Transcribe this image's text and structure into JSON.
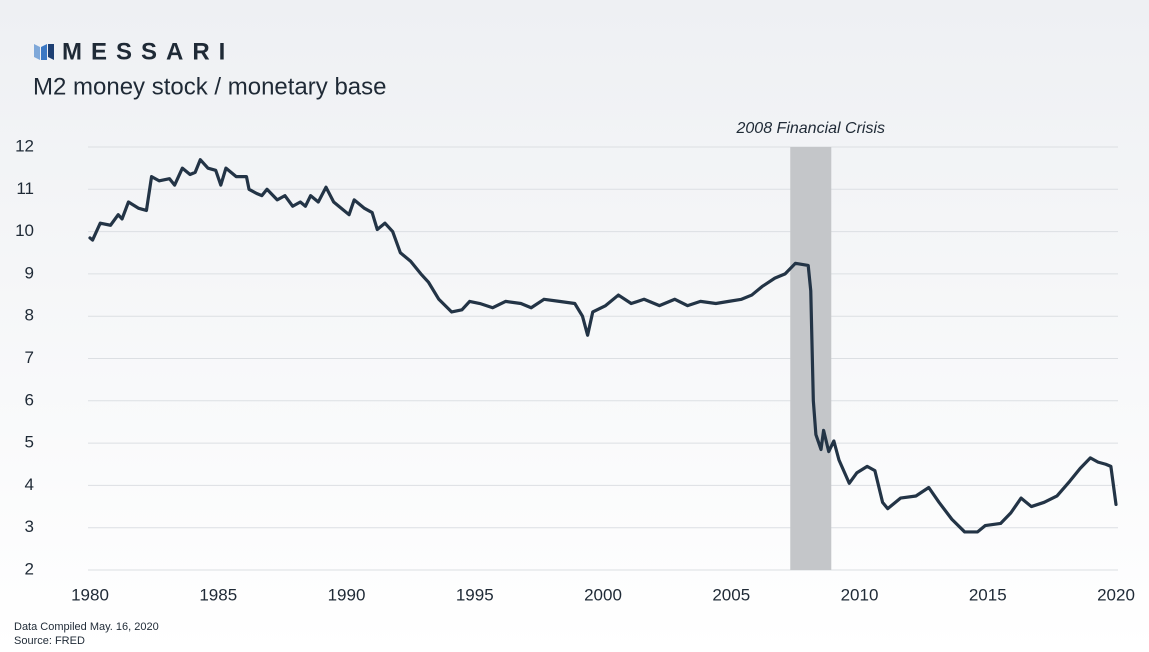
{
  "brand": "MESSARI",
  "chart_data": {
    "type": "line",
    "title": "M2 money stock / monetary base",
    "annotation": "2008 Financial Crisis",
    "shade": [
      2007.3,
      2008.9
    ],
    "shade_color": "#c4c6c9",
    "grid": true,
    "xlim": [
      1980,
      2020
    ],
    "xticks": [
      1980,
      1985,
      1990,
      1995,
      2000,
      2005,
      2010,
      2015,
      2020
    ],
    "ylim": [
      2,
      12
    ],
    "yticks": [
      2,
      3,
      4,
      5,
      6,
      7,
      8,
      9,
      10,
      11,
      12
    ],
    "series": [
      {
        "name": "M2 / monetary base",
        "color": "#233446",
        "x": [
          1980.0,
          1980.1,
          1980.4,
          1980.8,
          1981.1,
          1981.25,
          1981.5,
          1981.9,
          1982.2,
          1982.4,
          1982.7,
          1983.1,
          1983.3,
          1983.6,
          1983.9,
          1984.1,
          1984.3,
          1984.6,
          1984.9,
          1985.1,
          1985.3,
          1985.7,
          1986.1,
          1986.2,
          1986.5,
          1986.7,
          1986.9,
          1987.3,
          1987.6,
          1987.9,
          1988.2,
          1988.4,
          1988.6,
          1988.9,
          1989.2,
          1989.5,
          1989.7,
          1990.1,
          1990.3,
          1990.7,
          1991.0,
          1991.2,
          1991.5,
          1991.8,
          1992.1,
          1992.5,
          1992.9,
          1993.2,
          1993.6,
          1994.1,
          1994.5,
          1994.8,
          1995.2,
          1995.7,
          1996.2,
          1996.8,
          1997.2,
          1997.7,
          1998.3,
          1998.9,
          1999.2,
          1999.4,
          1999.6,
          2000.1,
          2000.6,
          2001.1,
          2001.6,
          2002.2,
          2002.8,
          2003.3,
          2003.8,
          2004.4,
          2004.9,
          2005.4,
          2005.8,
          2006.2,
          2006.7,
          2007.1,
          2007.5,
          2008.0,
          2008.1,
          2008.2,
          2008.3,
          2008.5,
          2008.6,
          2008.8,
          2009.0,
          2009.2,
          2009.6,
          2009.9,
          2010.3,
          2010.6,
          2010.9,
          2011.1,
          2011.6,
          2012.2,
          2012.7,
          2013.1,
          2013.6,
          2014.1,
          2014.6,
          2014.9,
          2015.5,
          2015.9,
          2016.3,
          2016.7,
          2017.2,
          2017.7,
          2018.2,
          2018.6,
          2019.0,
          2019.3,
          2019.6,
          2019.8,
          2020.0
        ],
        "values": [
          9.85,
          9.8,
          10.2,
          10.15,
          10.4,
          10.3,
          10.7,
          10.55,
          10.5,
          11.3,
          11.2,
          11.25,
          11.1,
          11.5,
          11.35,
          11.4,
          11.7,
          11.5,
          11.45,
          11.1,
          11.5,
          11.3,
          11.3,
          11.0,
          10.9,
          10.85,
          11.0,
          10.75,
          10.85,
          10.6,
          10.7,
          10.6,
          10.85,
          10.7,
          11.05,
          10.7,
          10.6,
          10.4,
          10.75,
          10.55,
          10.45,
          10.05,
          10.2,
          10.0,
          9.5,
          9.3,
          9.0,
          8.8,
          8.4,
          8.1,
          8.15,
          8.35,
          8.3,
          8.2,
          8.35,
          8.3,
          8.2,
          8.4,
          8.35,
          8.3,
          8.0,
          7.55,
          8.1,
          8.25,
          8.5,
          8.3,
          8.4,
          8.25,
          8.4,
          8.25,
          8.35,
          8.3,
          8.35,
          8.4,
          8.5,
          8.7,
          8.9,
          9.0,
          9.25,
          9.2,
          8.6,
          6.0,
          5.2,
          4.85,
          5.3,
          4.8,
          5.05,
          4.6,
          4.05,
          4.3,
          4.45,
          4.35,
          3.6,
          3.45,
          3.7,
          3.75,
          3.95,
          3.6,
          3.2,
          2.9,
          2.9,
          3.05,
          3.1,
          3.35,
          3.7,
          3.5,
          3.6,
          3.75,
          4.1,
          4.4,
          4.65,
          4.55,
          4.5,
          4.45,
          3.55
        ]
      }
    ]
  },
  "notes": [
    "Data Compiled May. 16, 2020",
    "Source: FRED"
  ]
}
